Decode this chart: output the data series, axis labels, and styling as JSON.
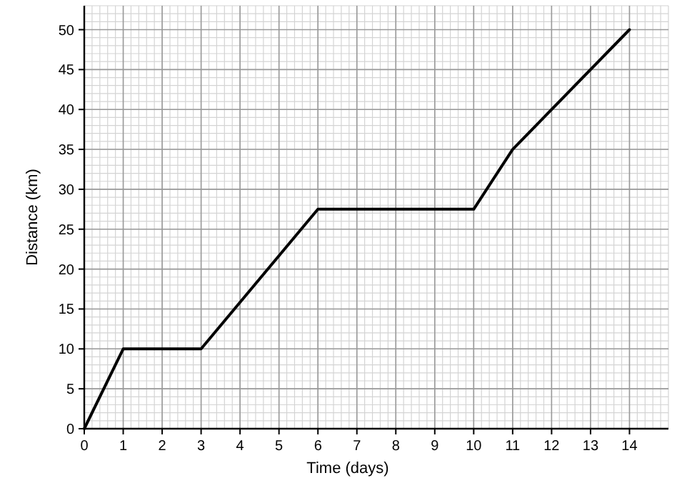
{
  "chart_data": {
    "type": "line",
    "xlabel": "Time (days)",
    "ylabel": "Distance (km)",
    "x": [
      0,
      1,
      3,
      6,
      10,
      11,
      14
    ],
    "series": [
      {
        "color": "#000000",
        "values": [
          0,
          10,
          10,
          27.5,
          27.5,
          35,
          50
        ]
      }
    ],
    "xlim": [
      0,
      15
    ],
    "ylim": [
      0,
      53
    ],
    "xticks": [
      0,
      1,
      2,
      3,
      4,
      5,
      6,
      7,
      8,
      9,
      10,
      11,
      12,
      13,
      14
    ],
    "yticks": [
      0,
      5,
      10,
      15,
      20,
      25,
      30,
      35,
      40,
      45,
      50
    ],
    "grid": true,
    "marker": "none",
    "line_style": "solid"
  }
}
